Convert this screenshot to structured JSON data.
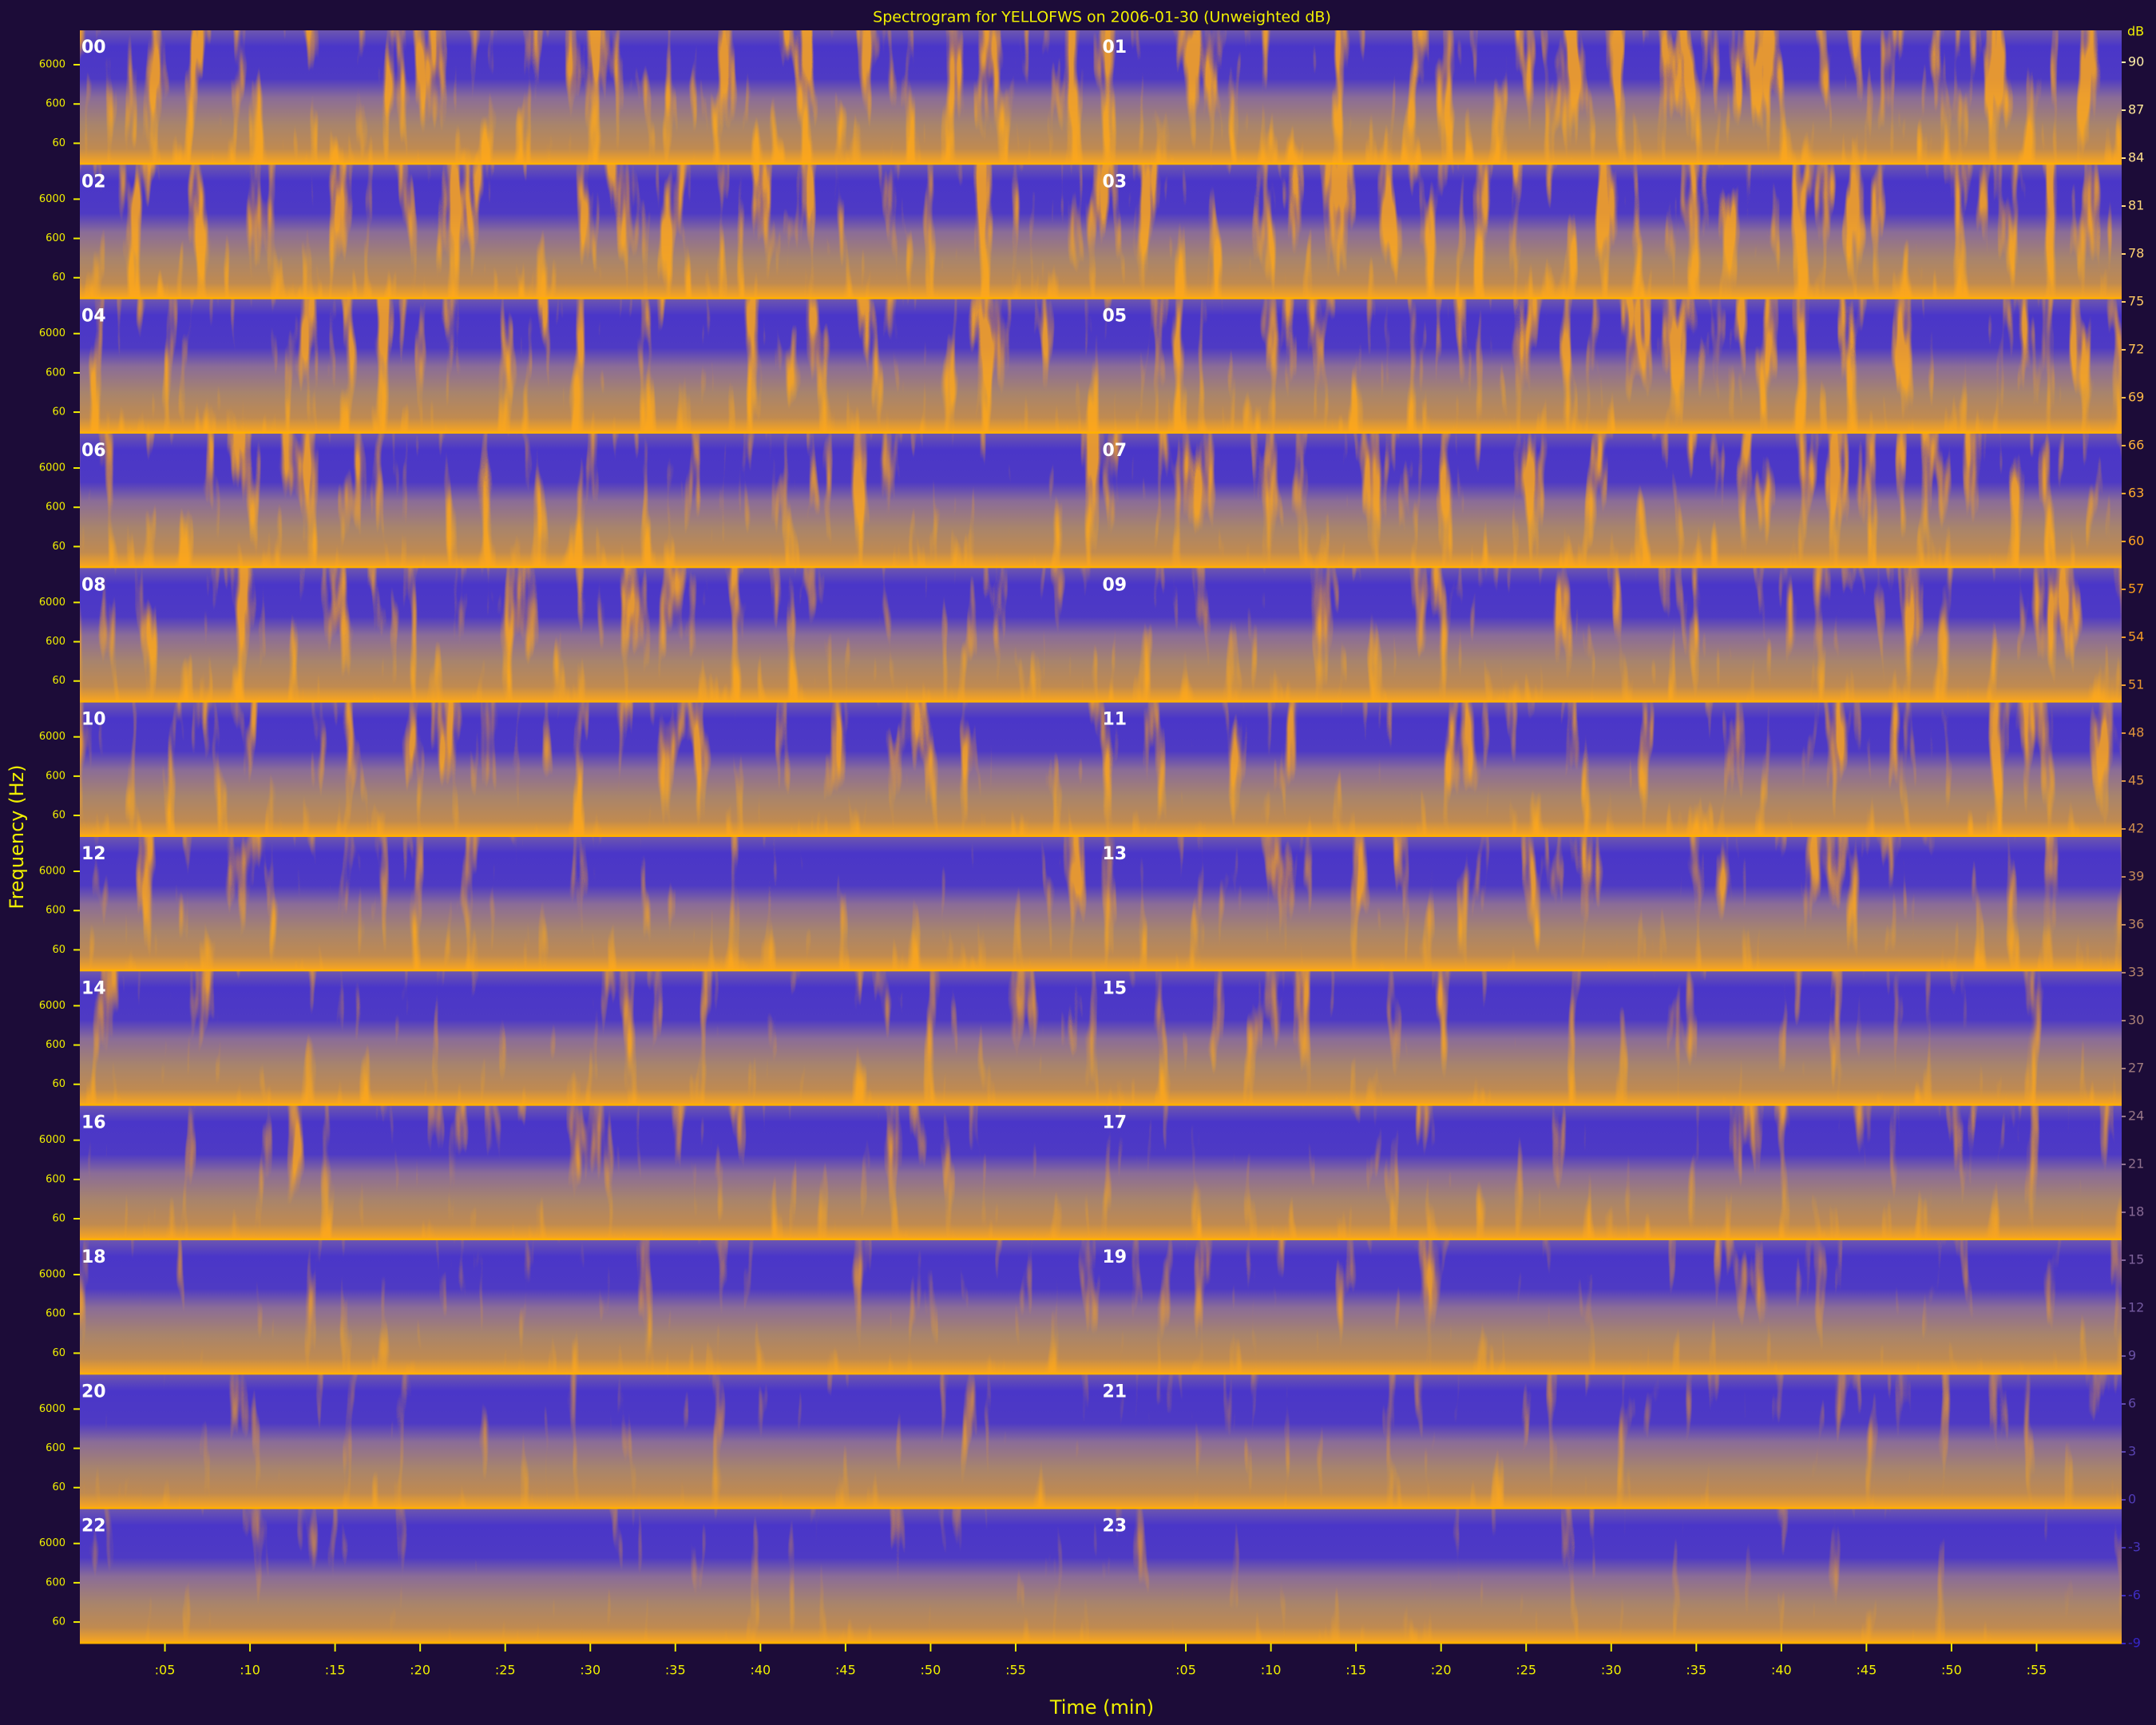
{
  "chart_data": {
    "type": "spectrogram",
    "title": "Spectrogram for YELLOFWS on 2006-01-30 (Unweighted dB)",
    "x_label": "Time (min)",
    "y_label": "Frequency (Hz)",
    "colorbar_label": "dB",
    "hours": [
      "00",
      "01",
      "02",
      "03",
      "04",
      "05",
      "06",
      "07",
      "08",
      "09",
      "10",
      "11",
      "12",
      "13",
      "14",
      "15",
      "16",
      "17",
      "18",
      "19",
      "20",
      "21",
      "22",
      "23"
    ],
    "xlim": [
      0,
      60
    ],
    "xticks": [
      {
        "value": 5,
        "label": ":05"
      },
      {
        "value": 10,
        "label": ":10"
      },
      {
        "value": 15,
        "label": ":15"
      },
      {
        "value": 20,
        "label": ":20"
      },
      {
        "value": 25,
        "label": ":25"
      },
      {
        "value": 30,
        "label": ":30"
      },
      {
        "value": 35,
        "label": ":35"
      },
      {
        "value": 40,
        "label": ":40"
      },
      {
        "value": 45,
        "label": ":45"
      },
      {
        "value": 50,
        "label": ":50"
      },
      {
        "value": 55,
        "label": ":55"
      }
    ],
    "ylim": [
      17,
      45000
    ],
    "log_y": true,
    "yticks": [
      60,
      600,
      6000
    ],
    "zlim": [
      -9,
      92
    ],
    "zticks": [
      90,
      87,
      84,
      81,
      78,
      75,
      72,
      69,
      66,
      63,
      60,
      57,
      54,
      51,
      48,
      45,
      42,
      39,
      36,
      33,
      30,
      27,
      24,
      21,
      18,
      15,
      12,
      9,
      6,
      3,
      0,
      -3,
      -6,
      -9
    ],
    "colormap": [
      "#3526c8",
      "#9a7a86",
      "#ffa018",
      "#fff4b0"
    ]
  }
}
